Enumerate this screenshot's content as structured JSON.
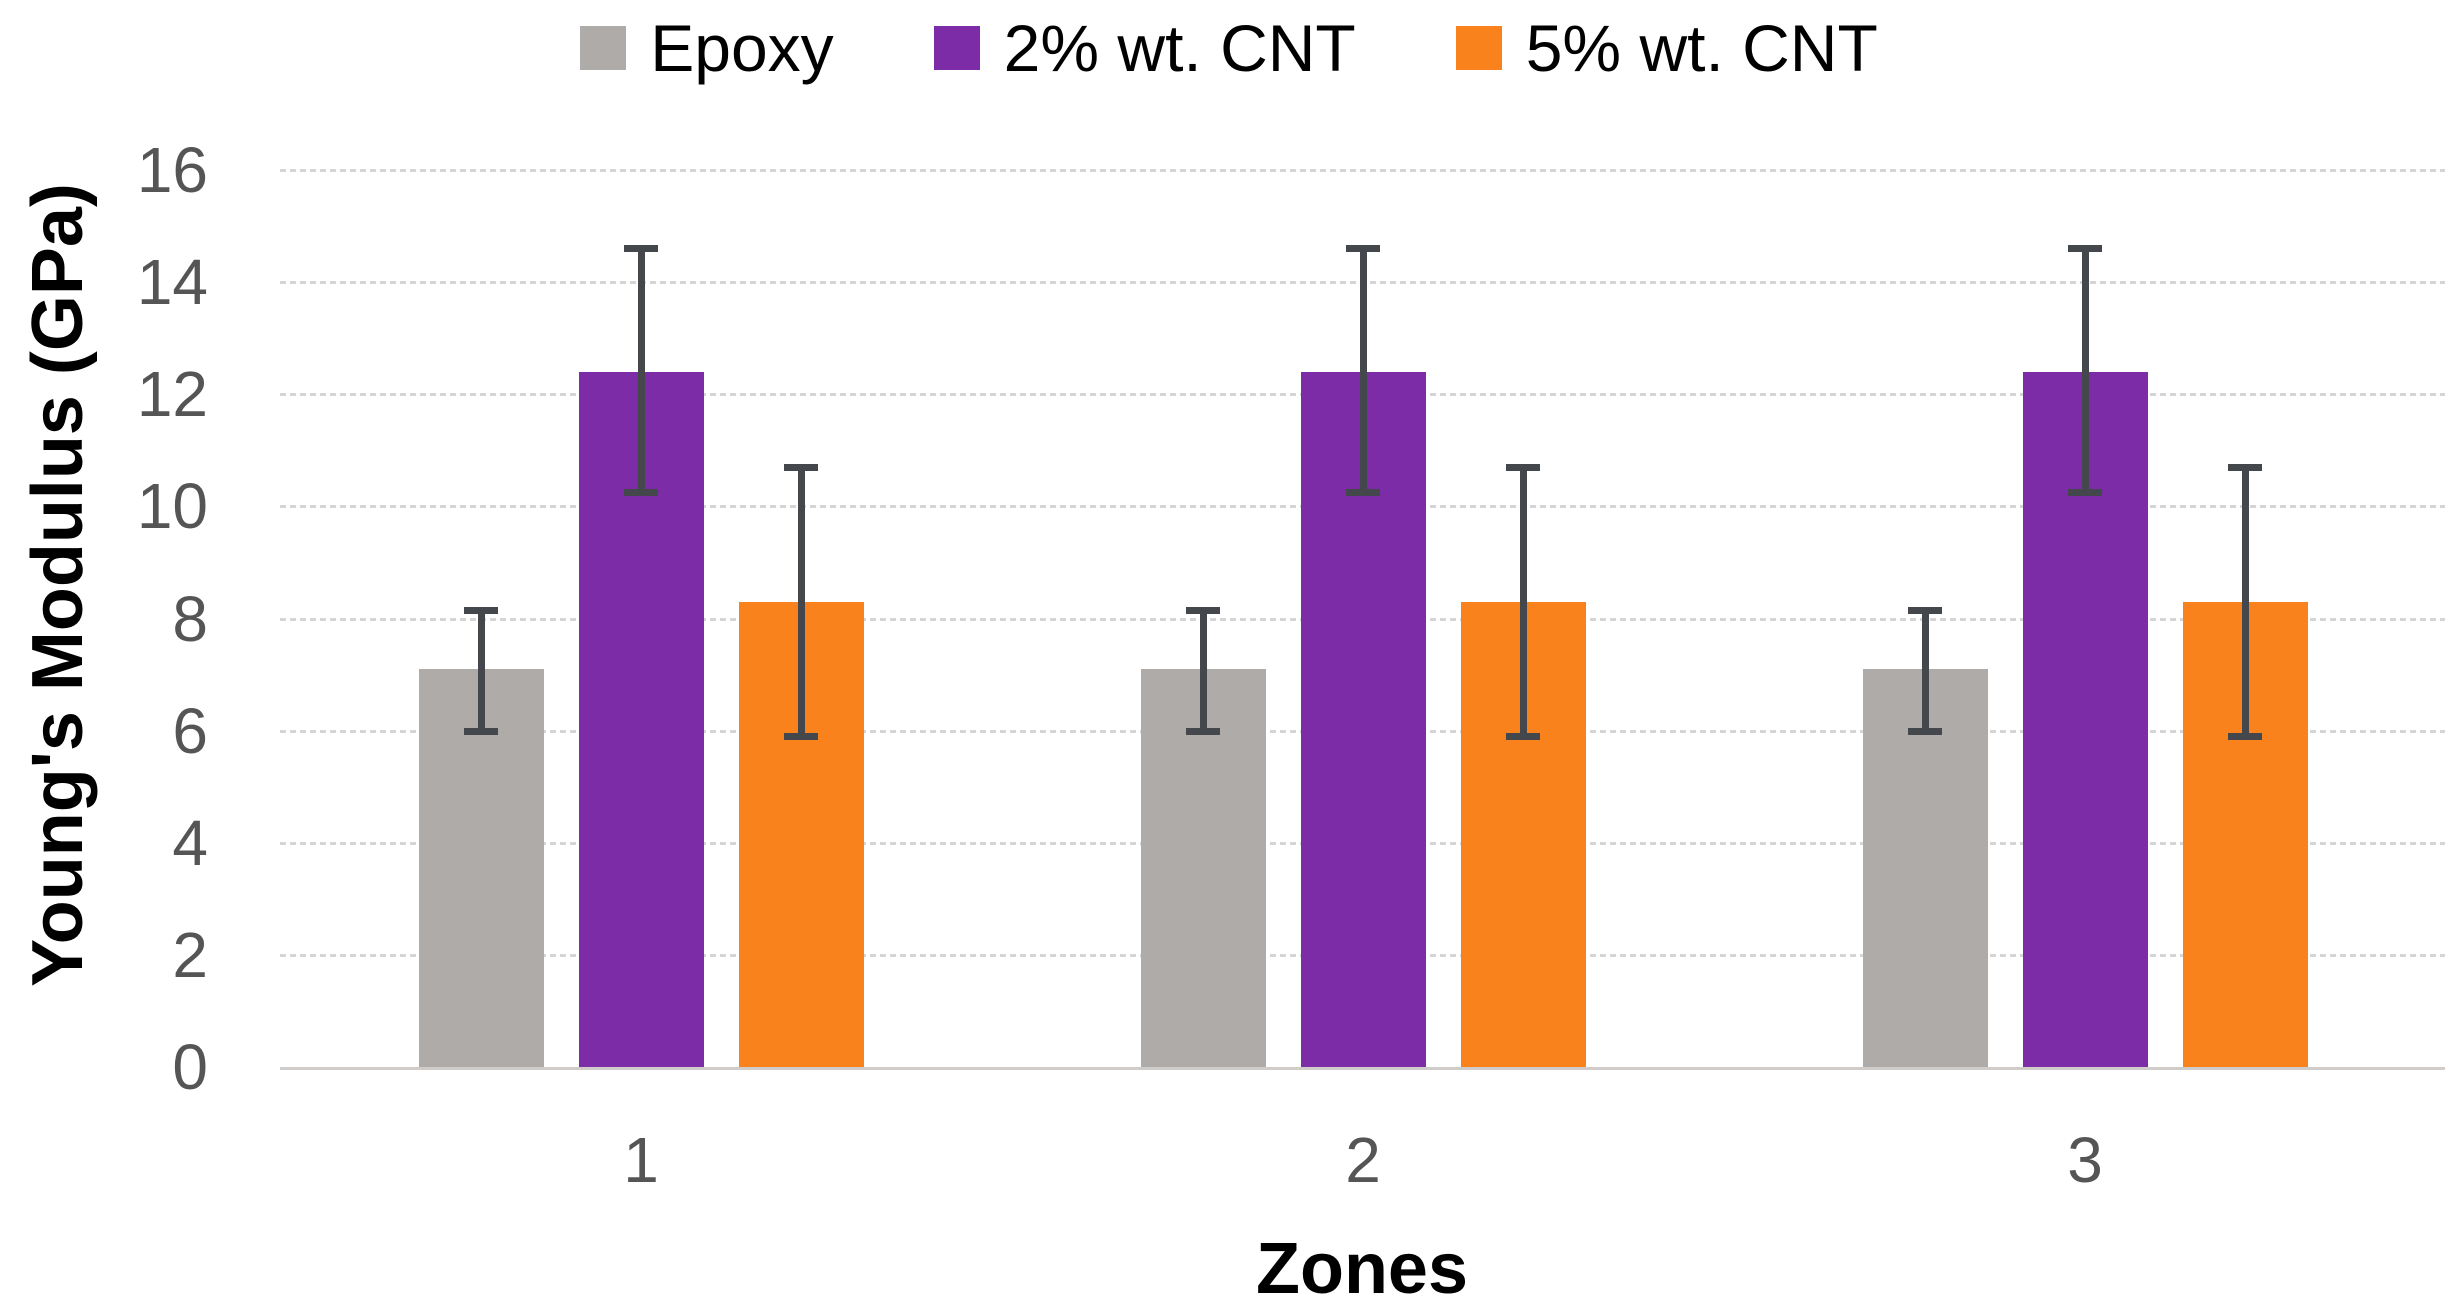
{
  "chart_data": {
    "type": "bar",
    "title": "",
    "xlabel": "Zones",
    "ylabel": "Young's Modulus (GPa)",
    "categories": [
      "1",
      "2",
      "3"
    ],
    "series": [
      {
        "name": "Epoxy",
        "color": "#AFABA8",
        "values": [
          7.1,
          7.1,
          7.1
        ],
        "error_low": [
          6.0,
          6.0,
          6.0
        ],
        "error_high": [
          8.15,
          8.15,
          8.15
        ]
      },
      {
        "name": "2% wt. CNT",
        "color": "#7C2CA6",
        "values": [
          12.4,
          12.4,
          12.4
        ],
        "error_low": [
          10.25,
          10.25,
          10.25
        ],
        "error_high": [
          14.6,
          14.6,
          14.6
        ]
      },
      {
        "name": "5% wt. CNT",
        "color": "#F9821D",
        "values": [
          8.3,
          8.3,
          8.3
        ],
        "error_low": [
          5.9,
          5.9,
          5.9
        ],
        "error_high": [
          10.7,
          10.7,
          10.7
        ]
      }
    ],
    "ylim": [
      0,
      16
    ],
    "ytick_step": 2,
    "y_ticks": [
      "0",
      "2",
      "4",
      "6",
      "8",
      "10",
      "12",
      "14",
      "16"
    ],
    "grid": "horizontal-dotted",
    "legend_position": "top-center",
    "colors": {
      "gridline": "#D5D5D5",
      "axis_line": "#CFCCCA",
      "error_bar": "#44474B",
      "tick_label": "#555555",
      "axis_title": "#000000",
      "legend_text": "#000000",
      "background": "#FFFFFF"
    }
  }
}
